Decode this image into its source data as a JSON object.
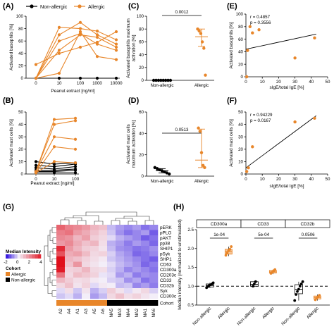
{
  "colors": {
    "allergic": "#E8862A",
    "nonallergic": "#000000",
    "hm_low": "#3C1FE0",
    "hm_mid": "#F3EEF8",
    "hm_high": "#E00F1B"
  },
  "legend": {
    "nonallergic": "Non-allergic",
    "allergic": "Allergic"
  },
  "chart_data": [
    {
      "panel": "A",
      "type": "line",
      "xlabel": "Peanut extract [ng/ml]",
      "ylabel": "Activated basophils [%]",
      "categories": [
        "0",
        "10",
        "100",
        "1000",
        "10000"
      ],
      "ylim": [
        0,
        100
      ],
      "yticks": [
        0,
        20,
        40,
        60,
        80,
        100
      ],
      "series": [
        {
          "name": "Non-allergic",
          "values": [
            0,
            0,
            0,
            0,
            0
          ]
        },
        {
          "name": "Allergic",
          "values": [
            22,
            40,
            50,
            58,
            75
          ]
        },
        {
          "name": "Allergic",
          "values": [
            0,
            60,
            72,
            55,
            45
          ]
        },
        {
          "name": "Allergic",
          "values": [
            0,
            70,
            90,
            70,
            55
          ]
        },
        {
          "name": "Allergic",
          "values": [
            0,
            82,
            80,
            76,
            62
          ]
        },
        {
          "name": "Allergic",
          "values": [
            0,
            45,
            70,
            66,
            50
          ]
        },
        {
          "name": "Allergic",
          "values": [
            0,
            8,
            75,
            35,
            30
          ]
        }
      ]
    },
    {
      "panel": "B",
      "type": "line",
      "xlabel": "Peanut extract [ng/ml]",
      "ylabel": "Activated mast cells [%]",
      "categories": [
        "0",
        "10",
        "100"
      ],
      "ylim": [
        0,
        50
      ],
      "yticks": [
        0,
        10,
        20,
        30,
        40,
        50
      ],
      "series": [
        {
          "name": "Non-allergic",
          "values": [
            10,
            8,
            9
          ]
        },
        {
          "name": "Non-allergic",
          "values": [
            7,
            6,
            8
          ]
        },
        {
          "name": "Non-allergic",
          "values": [
            5,
            4,
            6
          ]
        },
        {
          "name": "Non-allergic",
          "values": [
            3,
            3,
            4
          ]
        },
        {
          "name": "Non-allergic",
          "values": [
            2,
            2,
            3
          ]
        },
        {
          "name": "Non-allergic",
          "values": [
            1,
            1,
            1
          ]
        },
        {
          "name": "Allergic",
          "values": [
            2,
            44,
            45
          ]
        },
        {
          "name": "Allergic",
          "values": [
            2,
            40,
            43
          ]
        },
        {
          "name": "Allergic",
          "values": [
            2,
            30,
            28
          ]
        },
        {
          "name": "Allergic",
          "values": [
            1,
            22,
            20
          ]
        },
        {
          "name": "Allergic",
          "values": [
            1,
            10,
            9
          ]
        }
      ]
    },
    {
      "panel": "C",
      "type": "scatter",
      "ylabel": "Activated basophils maximum activation [%]",
      "categories": [
        "Non-allergic",
        "Allergic"
      ],
      "ylim": [
        0,
        100
      ],
      "yticks": [
        0,
        20,
        40,
        60,
        80,
        100
      ],
      "groups": [
        {
          "name": "Non-allergic",
          "values": [
            0,
            0,
            0,
            0,
            0,
            0,
            0,
            0
          ],
          "center": 0,
          "err": [
            0,
            0
          ]
        },
        {
          "name": "Allergic",
          "values": [
            80,
            77,
            73,
            60,
            50,
            8
          ],
          "center": 68,
          "err": [
            53,
            80
          ]
        }
      ],
      "annotation": "0.0012"
    },
    {
      "panel": "D",
      "type": "scatter",
      "ylabel": "Activated mast cells maximum activation [%]",
      "categories": [
        "Non-allergic",
        "Allergic"
      ],
      "ylim": [
        0,
        60
      ],
      "yticks": [
        0,
        20,
        40,
        60
      ],
      "groups": [
        {
          "name": "Non-allergic",
          "values": [
            8,
            7,
            6,
            5,
            4,
            3,
            2
          ],
          "center": 5,
          "err": [
            3,
            7
          ]
        },
        {
          "name": "Allergic",
          "values": [
            45,
            42,
            22,
            10,
            8
          ],
          "center": 15,
          "err": [
            8,
            44
          ]
        }
      ],
      "annotation": "0.0513"
    },
    {
      "panel": "E",
      "type": "scatter",
      "xlabel": "sIgE/total IgE [%]",
      "ylabel": "Activated basophils [%]",
      "xlim": [
        0,
        50
      ],
      "xticks": [
        0,
        10,
        20,
        30,
        40,
        50
      ],
      "ylim": [
        0,
        100
      ],
      "yticks": [
        0,
        20,
        40,
        60,
        80,
        100
      ],
      "points": [
        [
          0.5,
          0
        ],
        [
          1,
          42
        ],
        [
          2.5,
          80
        ],
        [
          4,
          70
        ],
        [
          8,
          75
        ],
        [
          30,
          30
        ],
        [
          42,
          62
        ]
      ],
      "fit": [
        [
          0,
          44
        ],
        [
          43,
          68
        ]
      ],
      "stats": [
        "r = 0.4857",
        "p = 0.3556"
      ]
    },
    {
      "panel": "F",
      "type": "scatter",
      "xlabel": "sIgE/total IgE [%]",
      "ylabel": "Activated mast cells [%]",
      "xlim": [
        0,
        50
      ],
      "xticks": [
        0,
        10,
        20,
        30,
        40,
        50
      ],
      "ylim": [
        0,
        50
      ],
      "yticks": [
        0,
        10,
        20,
        30,
        40,
        50
      ],
      "points": [
        [
          0.5,
          2
        ],
        [
          1.5,
          5
        ],
        [
          4,
          22
        ],
        [
          30,
          42
        ],
        [
          42,
          45
        ]
      ],
      "fit": [
        [
          0,
          5
        ],
        [
          43,
          47
        ]
      ],
      "stats": [
        "r = 0.94229",
        "p = 0.0167"
      ]
    },
    {
      "panel": "G",
      "type": "heatmap",
      "rows": [
        "pERK",
        "pPLG",
        "pAKT",
        "pp38",
        "SHIP1",
        "pSyk",
        "SHP1",
        "CD63",
        "CD300a",
        "CD203c",
        "CD33",
        "CD32b",
        "Syk",
        "CD300c"
      ],
      "columns": [
        "A2",
        "A4",
        "A1",
        "A3",
        "A5",
        "A6",
        "NA5",
        "NA3",
        "NA4",
        "NA2",
        "NA1",
        "NA6"
      ],
      "cohort": [
        "Allergic",
        "Allergic",
        "Allergic",
        "Allergic",
        "Allergic",
        "Allergic",
        "Non-allergic",
        "Non-allergic",
        "Non-allergic",
        "Non-allergic",
        "Non-allergic",
        "Non-allergic"
      ],
      "cohort_label": "Cohort",
      "colorbar_title": "Median Intensity",
      "colorbar_ticks": [
        "-2",
        "0",
        "2",
        "4"
      ],
      "cohort_legend_title": "Cohort",
      "cohort_legend": [
        "Allergic",
        "Non-allergic"
      ],
      "values": [
        [
          2.5,
          2.0,
          1.8,
          1.5,
          1.0,
          0.8,
          -0.5,
          -0.8,
          -1.0,
          -0.8,
          -1.2,
          -1.0
        ],
        [
          2.0,
          2.2,
          1.5,
          1.2,
          0.8,
          0.5,
          -0.4,
          -0.9,
          -1.2,
          -1.0,
          -0.8,
          -1.4
        ],
        [
          1.8,
          1.6,
          1.0,
          1.4,
          0.6,
          0.4,
          -0.2,
          -0.6,
          -0.8,
          -1.0,
          -1.4,
          -1.2
        ],
        [
          1.5,
          1.8,
          1.2,
          0.8,
          1.0,
          0.3,
          -0.6,
          -0.8,
          -1.1,
          -0.8,
          -1.0,
          -1.3
        ],
        [
          3.5,
          1.5,
          1.0,
          0.6,
          0.5,
          0.2,
          -0.5,
          -0.9,
          -1.0,
          -1.2,
          -1.1,
          -0.9
        ],
        [
          2.8,
          1.2,
          1.4,
          0.9,
          0.4,
          0.5,
          -0.3,
          -0.7,
          -0.9,
          -1.3,
          -1.2,
          -1.0
        ],
        [
          4.0,
          1.0,
          0.8,
          0.5,
          0.3,
          0.1,
          -0.4,
          -0.6,
          -0.8,
          -1.0,
          -1.2,
          -1.4
        ],
        [
          4.2,
          0.8,
          1.6,
          0.4,
          0.2,
          0.0,
          -0.2,
          -0.5,
          -0.7,
          -0.9,
          -1.3,
          -1.1
        ],
        [
          3.8,
          0.5,
          0.6,
          1.0,
          0.4,
          0.3,
          -0.3,
          -0.6,
          -1.0,
          -0.8,
          -1.0,
          -1.2
        ],
        [
          2.2,
          0.4,
          0.9,
          0.7,
          0.5,
          -0.1,
          -0.2,
          -0.8,
          -0.6,
          -1.1,
          -0.9,
          -1.0
        ],
        [
          1.0,
          0.6,
          0.3,
          0.4,
          0.1,
          0.0,
          -0.3,
          -0.4,
          -0.9,
          -0.7,
          -1.2,
          -1.0
        ],
        [
          0.4,
          0.8,
          0.2,
          0.5,
          -0.2,
          0.1,
          0.0,
          -0.5,
          -0.4,
          -1.0,
          -0.8,
          -1.1
        ],
        [
          -0.2,
          0.3,
          -0.4,
          0.2,
          -0.6,
          -0.3,
          0.6,
          0.2,
          -0.2,
          0.1,
          0.4,
          -0.3
        ],
        [
          -0.4,
          -0.2,
          -0.6,
          0.0,
          -0.8,
          -0.5,
          0.4,
          0.8,
          0.3,
          0.5,
          0.2,
          0.0
        ]
      ]
    },
    {
      "panel": "H",
      "type": "box",
      "ylabel": "Median intensity (normalized to unstimulated)",
      "ylim": [
        0.5,
        2.5
      ],
      "yticks": [
        0.5,
        1.0,
        1.5,
        2.0,
        2.5
      ],
      "yticklabels": [
        "0.5",
        "1.0",
        "1.5",
        "2.0",
        "2.5"
      ],
      "reference_line": 1.0,
      "facets": [
        {
          "name": "CD300a",
          "pvalue": "1e-04",
          "groups": [
            {
              "name": "Non-allergic",
              "box": [
                0.98,
                1.02,
                1.06
              ],
              "whisker": [
                0.95,
                1.09
              ],
              "points": [
                0.96,
                0.99,
                1.02,
                1.04,
                1.06,
                1.09
              ]
            },
            {
              "name": "Allergic",
              "box": [
                1.85,
                1.92,
                1.98
              ],
              "whisker": [
                1.8,
                2.05
              ],
              "points": [
                1.82,
                1.88,
                1.94,
                1.98,
                2.05
              ]
            }
          ]
        },
        {
          "name": "CD33",
          "pvalue": "5e-04",
          "groups": [
            {
              "name": "Non-allergic",
              "box": [
                1.0,
                1.05,
                1.12
              ],
              "whisker": [
                0.98,
                1.14
              ],
              "points": [
                1.0,
                1.06,
                1.12
              ]
            },
            {
              "name": "Allergic",
              "box": [
                1.35,
                1.38,
                1.42
              ],
              "whisker": [
                1.32,
                1.44
              ],
              "points": [
                1.34,
                1.37,
                1.41,
                1.44
              ]
            }
          ]
        },
        {
          "name": "CD32b",
          "pvalue": "0.0506",
          "groups": [
            {
              "name": "Non-allergic",
              "box": [
                0.8,
                0.92,
                1.04
              ],
              "whisker": [
                0.62,
                1.12
              ],
              "points": [
                0.62,
                0.78,
                0.86,
                0.92,
                1.0,
                1.06,
                1.12
              ]
            },
            {
              "name": "Allergic",
              "box": [
                0.66,
                0.7,
                0.74
              ],
              "whisker": [
                0.62,
                0.78
              ],
              "points": [
                0.64,
                0.68,
                0.72,
                0.76
              ]
            }
          ]
        }
      ]
    }
  ]
}
